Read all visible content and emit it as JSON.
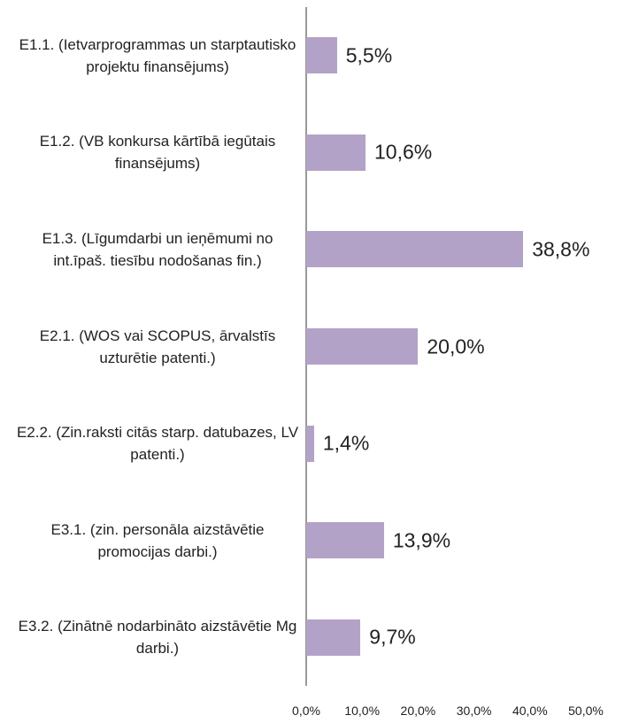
{
  "chart_data": {
    "type": "bar",
    "orientation": "horizontal",
    "categories": [
      "E1.1. (Ietvarprogrammas un starptautisko projektu finansējums)",
      "E1.2. (VB konkursa kārtībā iegūtais finansējums)",
      "E1.3. (Līgumdarbi un ieņēmumi no int.īpaš. tiesību nodošanas fin.)",
      "E2.1. (WOS vai SCOPUS, ārvalstīs uzturētie patenti.)",
      "E2.2. (Zin.raksti citās starp. datubazes, LV patenti.)",
      "E3.1. (zin. personāla aizstāvētie promocijas darbi.)",
      "E3.2. (Zinātnē nodarbināto aizstāvētie Mg darbi.)"
    ],
    "values": [
      5.5,
      10.6,
      38.8,
      20.0,
      1.4,
      13.9,
      9.7
    ],
    "value_labels": [
      "5,5%",
      "10,6%",
      "38,8%",
      "20,0%",
      "1,4%",
      "13,9%",
      "9,7%"
    ],
    "color": "#b3a2c7",
    "xlim": [
      0,
      50
    ],
    "xticks": [
      {
        "value": 0,
        "label": "0,0%"
      },
      {
        "value": 10,
        "label": "10,0%"
      },
      {
        "value": 20,
        "label": "20,0%"
      },
      {
        "value": 30,
        "label": "30,0%"
      },
      {
        "value": 40,
        "label": "40,0%"
      },
      {
        "value": 50,
        "label": "50,0%"
      }
    ],
    "grid": false
  }
}
